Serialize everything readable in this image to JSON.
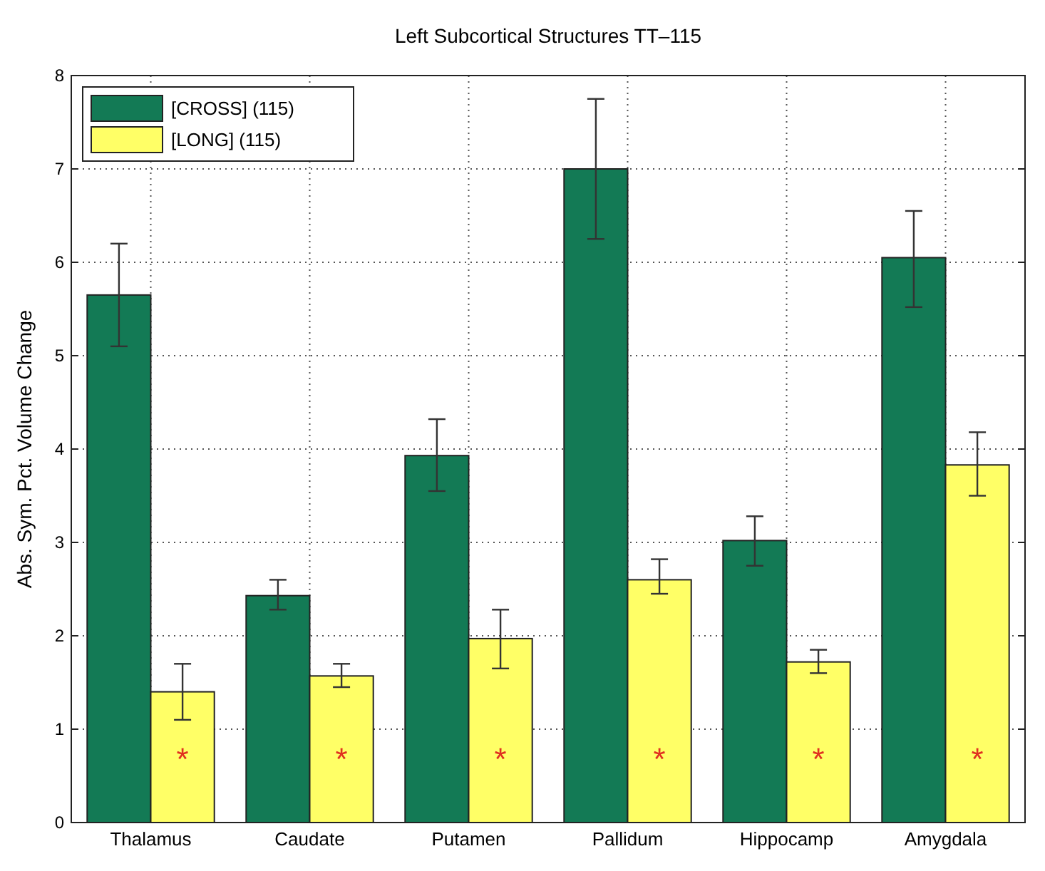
{
  "chart_data": {
    "type": "bar",
    "title": "Left Subcortical Structures TT–115",
    "ylabel": "Abs. Sym. Pct. Volume Change",
    "categories": [
      "Thalamus",
      "Caudate",
      "Putamen",
      "Pallidum",
      "Hippocamp",
      "Amygdala"
    ],
    "series": [
      {
        "name": "[CROSS] (115)",
        "color": "#137a55",
        "values": [
          5.65,
          2.43,
          3.93,
          7.0,
          3.02,
          6.05
        ],
        "errors": [
          [
            5.1,
            6.2
          ],
          [
            2.28,
            2.6
          ],
          [
            3.55,
            4.32
          ],
          [
            6.25,
            7.75
          ],
          [
            2.75,
            3.28
          ],
          [
            5.52,
            6.55
          ]
        ]
      },
      {
        "name": "[LONG] (115)",
        "color": "#ffff66",
        "values": [
          1.4,
          1.57,
          1.97,
          2.6,
          1.72,
          3.83
        ],
        "errors": [
          [
            1.1,
            1.7
          ],
          [
            1.45,
            1.7
          ],
          [
            1.65,
            2.28
          ],
          [
            2.45,
            2.82
          ],
          [
            1.6,
            1.85
          ],
          [
            3.5,
            4.18
          ]
        ]
      }
    ],
    "ylim": [
      0,
      8
    ],
    "yticks": [
      0,
      1,
      2,
      3,
      4,
      5,
      6,
      7,
      8
    ],
    "grid": true,
    "legend": "top left",
    "annotations": [
      {
        "text": "*",
        "x": "Thalamus",
        "y": 0.8
      },
      {
        "text": "*",
        "x": "Caudate",
        "y": 0.8
      },
      {
        "text": "*",
        "x": "Putamen",
        "y": 0.8
      },
      {
        "text": "*",
        "x": "Pallidum",
        "y": 0.8
      },
      {
        "text": "*",
        "x": "Hippocamp",
        "y": 0.8
      },
      {
        "text": "*",
        "x": "Amygdala",
        "y": 0.8
      }
    ]
  }
}
